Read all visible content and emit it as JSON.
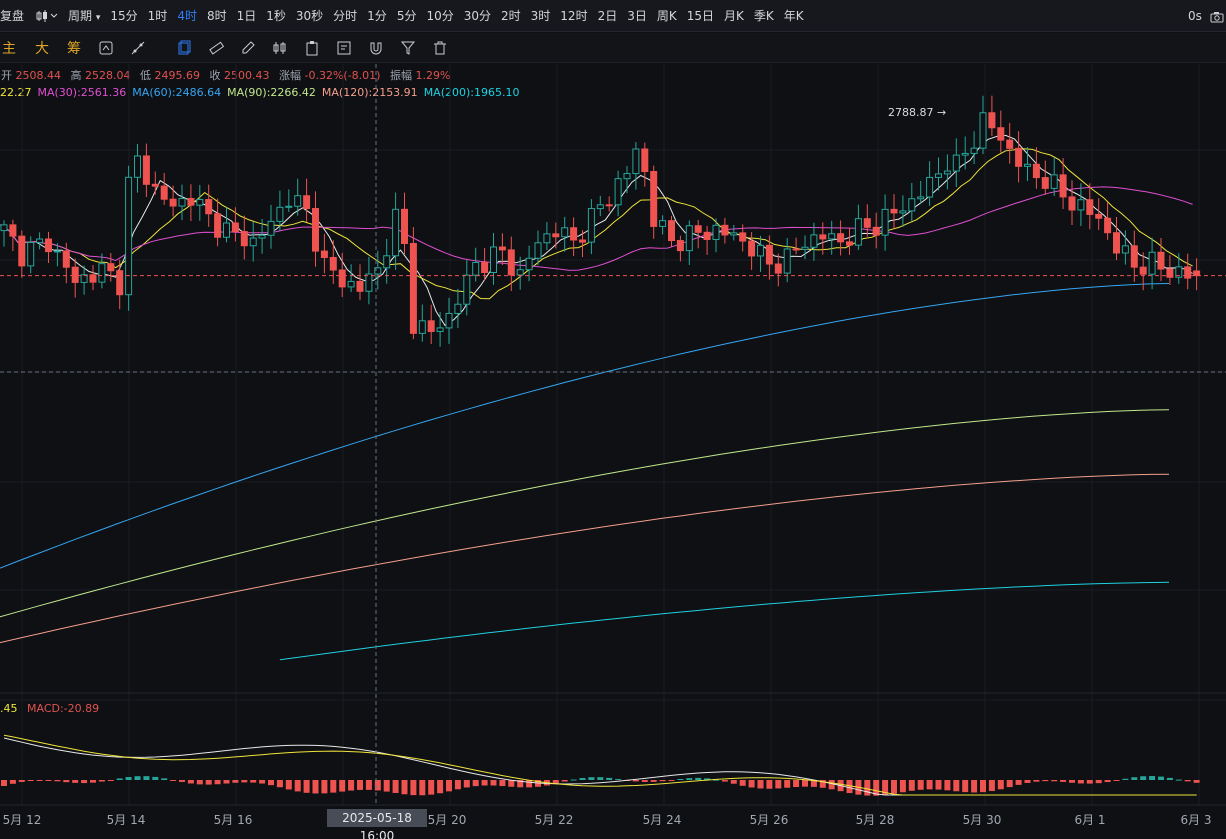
{
  "toolbar": {
    "restore_label": "复盘",
    "chart_type_icon": "candlestick-icon",
    "period_label": "周期",
    "intervals": [
      {
        "label": "15分",
        "active": false
      },
      {
        "label": "1时",
        "active": false
      },
      {
        "label": "4时",
        "active": true
      },
      {
        "label": "8时",
        "active": false
      },
      {
        "label": "1日",
        "active": false
      },
      {
        "label": "1秒",
        "active": false
      },
      {
        "label": "30秒",
        "active": false
      },
      {
        "label": "分时",
        "active": false
      },
      {
        "label": "1分",
        "active": false
      },
      {
        "label": "5分",
        "active": false
      },
      {
        "label": "10分",
        "active": false
      },
      {
        "label": "30分",
        "active": false
      },
      {
        "label": "2时",
        "active": false
      },
      {
        "label": "3时",
        "active": false
      },
      {
        "label": "12时",
        "active": false
      },
      {
        "label": "2日",
        "active": false
      },
      {
        "label": "3日",
        "active": false
      },
      {
        "label": "周K",
        "active": false
      },
      {
        "label": "15日",
        "active": false
      },
      {
        "label": "月K",
        "active": false
      },
      {
        "label": "季K",
        "active": false
      },
      {
        "label": "年K",
        "active": false
      }
    ],
    "countdown": "0s",
    "camera_icon": "camera-icon"
  },
  "draw_toolbar": {
    "indicators": [
      "主",
      "大",
      "筹"
    ],
    "tools": [
      "indicator-template-icon",
      "drawing-tools-icon",
      "select-icon",
      "ruler-icon",
      "pencil-icon",
      "candle-compare-icon",
      "clipboard-icon",
      "note-icon",
      "magnet-icon",
      "filter-icon",
      "trash-icon"
    ]
  },
  "ohlc": {
    "open_label": "开",
    "open": "2508.44",
    "high_label": "高",
    "high": "2528.04",
    "low_label": "低",
    "low": "2495.69",
    "close_label": "收",
    "close": "2500.43",
    "change_label": "涨幅",
    "change": "-0.32%(-8.01)",
    "amplitude_label": "振幅",
    "amplitude": "1.29%"
  },
  "ma": [
    {
      "text": "22.27",
      "color": "#f0e43a"
    },
    {
      "text": "MA(30):2561.36",
      "color": "#e04fd0"
    },
    {
      "text": "MA(60):2486.64",
      "color": "#36a6f2"
    },
    {
      "text": "MA(90):2266.42",
      "color": "#c3e88d"
    },
    {
      "text": "MA(120):2153.91",
      "color": "#f59e8b"
    },
    {
      "text": "MA(200):1965.10",
      "color": "#1fd1e0"
    }
  ],
  "macd": {
    "dea": ".45",
    "macd_text": "MACD:-20.89"
  },
  "high_marker": "2788.87",
  "crosshair_time": "2025-05-18 16:00",
  "x_axis_labels": [
    "5月 12",
    "5月 14",
    "5月 16",
    "5月 20",
    "5月 22",
    "5月 24",
    "5月 26",
    "5月 28",
    "5月 30",
    "6月 1",
    "6月 3"
  ],
  "colors": {
    "up": "#26a69a",
    "down": "#ef5350",
    "active": "#2f7cf6",
    "indicator": "#e0a526"
  },
  "chart_data": {
    "type": "candlestick",
    "interval": "4时",
    "x_start": "2025-05-11 16:00",
    "last_price": "2500.43",
    "candle_count": 135,
    "ma_periods": [
      5,
      10,
      30,
      60,
      90,
      120,
      200
    ],
    "ma_last": {
      "MA(30)": 2561.36,
      "MA(60)": 2486.64,
      "MA(90)": 2266.42,
      "MA(120)": 2153.91,
      "MA(200)": 1965.1
    },
    "y_range_visible": [
      1820,
      2810
    ],
    "high": 2788.87,
    "macd_last": -20.89,
    "grid": true
  }
}
